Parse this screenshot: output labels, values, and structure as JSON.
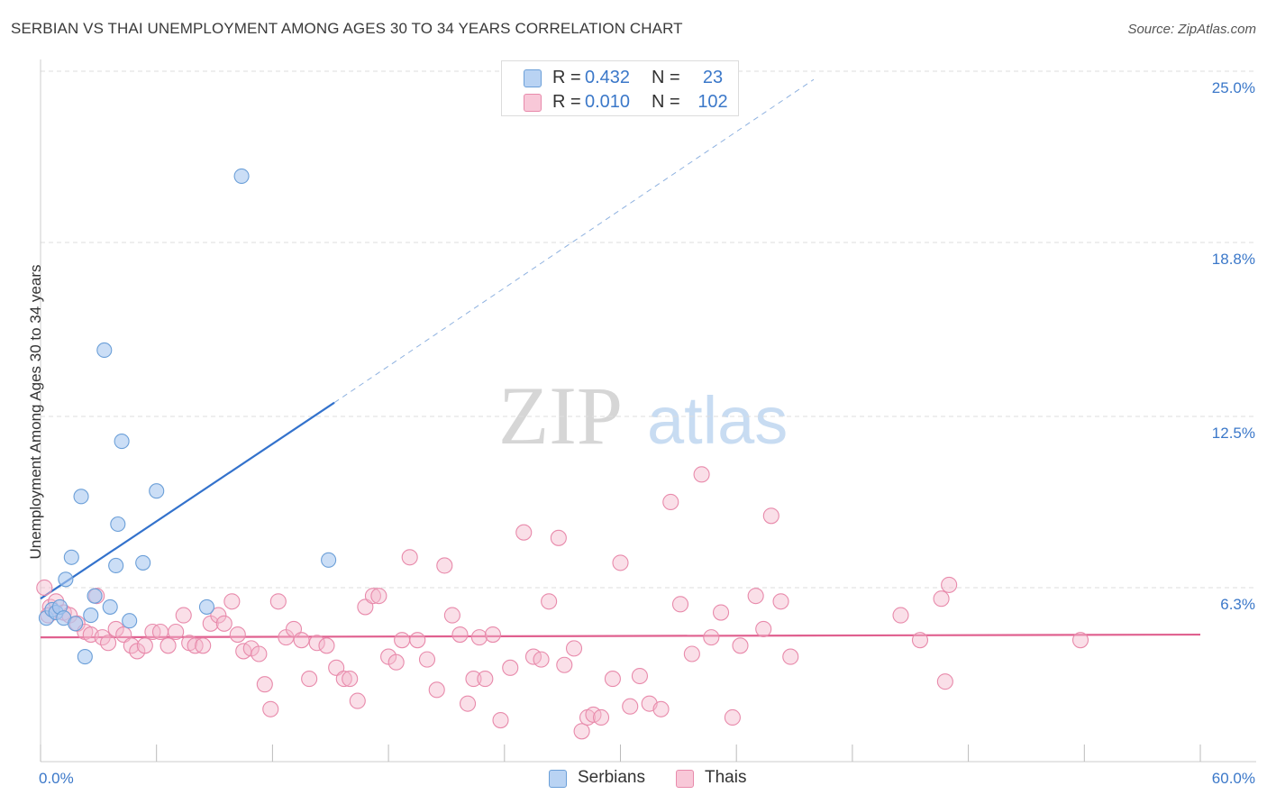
{
  "title": "SERBIAN VS THAI UNEMPLOYMENT AMONG AGES 30 TO 34 YEARS CORRELATION CHART",
  "source": "Source: ZipAtlas.com",
  "watermark": {
    "zip": "ZIP",
    "atlas": "atlas"
  },
  "legend_top": [
    {
      "r_label": "R =",
      "r_value": "0.432",
      "n_label": "N =",
      "n_value": "23"
    },
    {
      "r_label": "R =",
      "r_value": "0.010",
      "n_label": "N =",
      "n_value": "102"
    }
  ],
  "legend_bottom": [
    "Serbians",
    "Thais"
  ],
  "colors": {
    "serbian_fill": "#a8c8f0",
    "serbian_stroke": "#6b9fd8",
    "serbian_line": "#3372cc",
    "thai_fill": "#f5b8cc",
    "thai_stroke": "#e88aab",
    "thai_line": "#e0608f",
    "tick_label": "#3b78c9",
    "grid": "#dddddd"
  },
  "chart_data": {
    "type": "scatter",
    "title": "SERBIAN VS THAI UNEMPLOYMENT AMONG AGES 30 TO 34 YEARS CORRELATION CHART",
    "xlabel": "",
    "ylabel": "Unemployment Among Ages 30 to 34 years",
    "xlim": [
      0,
      60
    ],
    "ylim": [
      0,
      25
    ],
    "x_tick_labels": [
      "0.0%",
      "60.0%"
    ],
    "y_ticks": [
      6.3,
      12.5,
      18.8,
      25.0
    ],
    "y_tick_labels": [
      "6.3%",
      "12.5%",
      "18.8%",
      "25.0%"
    ],
    "grid": true,
    "legend_position": "top-center",
    "series": [
      {
        "name": "Serbians",
        "r": 0.432,
        "n": 23,
        "trend": {
          "x_start": 0.0,
          "y_start": 5.9,
          "x_solid_end": 15.2,
          "y_solid_end": 13.0,
          "x_dash_end": 40.0,
          "y_dash_end": 24.7
        },
        "points": [
          [
            0.3,
            5.2
          ],
          [
            0.6,
            5.5
          ],
          [
            0.8,
            5.4
          ],
          [
            1.0,
            5.6
          ],
          [
            1.2,
            5.2
          ],
          [
            1.3,
            6.6
          ],
          [
            1.6,
            7.4
          ],
          [
            1.8,
            5.0
          ],
          [
            2.1,
            9.6
          ],
          [
            2.3,
            3.8
          ],
          [
            2.6,
            5.3
          ],
          [
            2.8,
            6.0
          ],
          [
            3.3,
            14.9
          ],
          [
            3.6,
            5.6
          ],
          [
            3.9,
            7.1
          ],
          [
            4.0,
            8.6
          ],
          [
            4.2,
            11.6
          ],
          [
            4.6,
            5.1
          ],
          [
            5.3,
            7.2
          ],
          [
            6.0,
            9.8
          ],
          [
            8.6,
            5.6
          ],
          [
            10.4,
            21.2
          ],
          [
            14.9,
            7.3
          ]
        ]
      },
      {
        "name": "Thais",
        "r": 0.01,
        "n": 102,
        "trend": {
          "x_start": 0.0,
          "y_start": 4.5,
          "x_end": 60.0,
          "y_end": 4.6
        },
        "points": [
          [
            0.2,
            6.3
          ],
          [
            0.5,
            5.6
          ],
          [
            0.8,
            5.8
          ],
          [
            1.2,
            5.4
          ],
          [
            1.5,
            5.3
          ],
          [
            1.9,
            5.0
          ],
          [
            2.3,
            4.7
          ],
          [
            2.6,
            4.6
          ],
          [
            2.9,
            6.0
          ],
          [
            3.2,
            4.5
          ],
          [
            3.5,
            4.3
          ],
          [
            3.9,
            4.8
          ],
          [
            4.3,
            4.6
          ],
          [
            4.7,
            4.2
          ],
          [
            5.0,
            4.0
          ],
          [
            5.4,
            4.2
          ],
          [
            5.8,
            4.7
          ],
          [
            6.2,
            4.7
          ],
          [
            6.6,
            4.2
          ],
          [
            7.0,
            4.7
          ],
          [
            7.4,
            5.3
          ],
          [
            7.7,
            4.3
          ],
          [
            8.0,
            4.2
          ],
          [
            8.4,
            4.2
          ],
          [
            8.8,
            5.0
          ],
          [
            9.2,
            5.3
          ],
          [
            9.5,
            5.0
          ],
          [
            9.9,
            5.8
          ],
          [
            10.2,
            4.6
          ],
          [
            10.5,
            4.0
          ],
          [
            10.9,
            4.1
          ],
          [
            11.3,
            3.9
          ],
          [
            11.6,
            2.8
          ],
          [
            11.9,
            1.9
          ],
          [
            12.3,
            5.8
          ],
          [
            12.7,
            4.5
          ],
          [
            13.1,
            4.8
          ],
          [
            13.5,
            4.4
          ],
          [
            13.9,
            3.0
          ],
          [
            14.3,
            4.3
          ],
          [
            14.8,
            4.2
          ],
          [
            15.3,
            3.4
          ],
          [
            15.7,
            3.0
          ],
          [
            16.0,
            3.0
          ],
          [
            16.4,
            2.2
          ],
          [
            16.8,
            5.6
          ],
          [
            17.2,
            6.0
          ],
          [
            17.5,
            6.0
          ],
          [
            18.0,
            3.8
          ],
          [
            18.4,
            3.6
          ],
          [
            18.7,
            4.4
          ],
          [
            19.1,
            7.4
          ],
          [
            19.5,
            4.4
          ],
          [
            20.0,
            3.7
          ],
          [
            20.5,
            2.6
          ],
          [
            20.9,
            7.1
          ],
          [
            21.3,
            5.3
          ],
          [
            21.7,
            4.6
          ],
          [
            22.1,
            2.1
          ],
          [
            22.4,
            3.0
          ],
          [
            22.7,
            4.5
          ],
          [
            23.0,
            3.0
          ],
          [
            23.4,
            4.6
          ],
          [
            23.8,
            1.5
          ],
          [
            24.3,
            3.4
          ],
          [
            25.0,
            8.3
          ],
          [
            25.5,
            3.8
          ],
          [
            25.9,
            3.7
          ],
          [
            26.3,
            5.8
          ],
          [
            26.8,
            8.1
          ],
          [
            27.1,
            3.5
          ],
          [
            27.6,
            4.1
          ],
          [
            28.0,
            1.1
          ],
          [
            28.3,
            1.6
          ],
          [
            28.6,
            1.7
          ],
          [
            29.0,
            1.6
          ],
          [
            29.6,
            3.0
          ],
          [
            30.0,
            7.2
          ],
          [
            30.5,
            2.0
          ],
          [
            31.0,
            3.1
          ],
          [
            31.5,
            2.1
          ],
          [
            32.1,
            1.9
          ],
          [
            32.6,
            9.4
          ],
          [
            33.1,
            5.7
          ],
          [
            33.7,
            3.9
          ],
          [
            34.2,
            10.4
          ],
          [
            34.7,
            4.5
          ],
          [
            35.2,
            5.4
          ],
          [
            35.8,
            1.6
          ],
          [
            36.2,
            4.2
          ],
          [
            37.0,
            6.0
          ],
          [
            37.4,
            4.8
          ],
          [
            37.8,
            8.9
          ],
          [
            38.3,
            5.8
          ],
          [
            38.8,
            3.8
          ],
          [
            44.5,
            5.3
          ],
          [
            45.5,
            4.4
          ],
          [
            46.6,
            5.9
          ],
          [
            46.8,
            2.9
          ],
          [
            47.0,
            6.4
          ],
          [
            53.8,
            4.4
          ],
          [
            0.4,
            5.3
          ]
        ]
      }
    ]
  }
}
